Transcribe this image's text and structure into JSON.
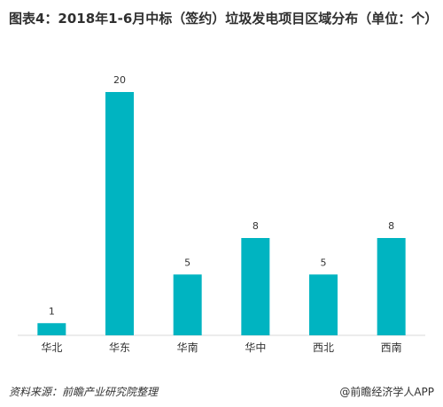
{
  "chart_data": {
    "type": "bar",
    "title": "图表4：2018年1-6月中标（签约）垃圾发电项目区域分布（单位：个）",
    "categories": [
      "华北",
      "华东",
      "华南",
      "华中",
      "西北",
      "西南"
    ],
    "values": [
      1,
      20,
      5,
      8,
      5,
      8
    ],
    "xlabel": "",
    "ylabel": "",
    "ylim": [
      0,
      20
    ],
    "grid": false,
    "bar_color": "#00b4c1",
    "data_labels": true
  },
  "footer": {
    "source": "资料来源：前瞻产业研究院整理",
    "brand": "@前瞻经济学人APP"
  }
}
